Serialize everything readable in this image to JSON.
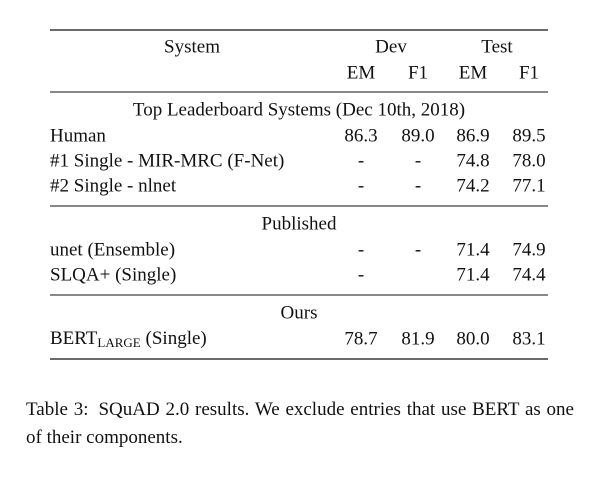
{
  "table": {
    "header": {
      "system": "System",
      "dev": "Dev",
      "test": "Test"
    },
    "subheader": [
      "EM",
      "F1",
      "EM",
      "F1"
    ],
    "sections": [
      {
        "title": "Top Leaderboard Systems (Dec 10th, 2018)",
        "rows": [
          {
            "label": "Human",
            "cells": [
              "86.3",
              "89.0",
              "86.9",
              "89.5"
            ]
          },
          {
            "label": "#1 Single - MIR-MRC (F-Net)",
            "cells": [
              "-",
              "-",
              "74.8",
              "78.0"
            ]
          },
          {
            "label": "#2 Single - nlnet",
            "cells": [
              "-",
              "-",
              "74.2",
              "77.1"
            ]
          }
        ]
      },
      {
        "title": "Published",
        "rows": [
          {
            "label": "unet (Ensemble)",
            "cells": [
              "-",
              "-",
              "71.4",
              "74.9"
            ]
          },
          {
            "label": "SLQA+ (Single)",
            "cells": [
              "-",
              null,
              "71.4",
              "74.4"
            ]
          }
        ]
      },
      {
        "title": "Ours",
        "rows": [
          {
            "label": {
              "text": "BERT",
              "sub": "LARGE",
              "suffix": " (Single)"
            },
            "cells": [
              "78.7",
              "81.9",
              "80.0",
              "83.1"
            ]
          }
        ]
      }
    ]
  },
  "caption": {
    "label": "Table 3:",
    "text": "SQuAD 2.0 results. We exclude entries that use BERT as one of their components."
  }
}
